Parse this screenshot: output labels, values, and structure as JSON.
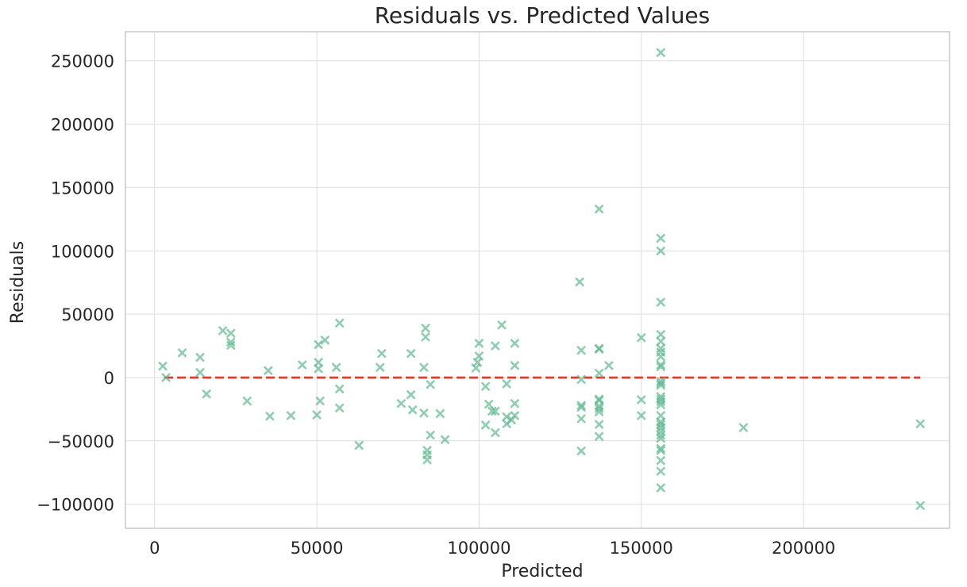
{
  "chart_data": {
    "type": "scatter",
    "title": "Residuals vs. Predicted Values",
    "xlabel": "Predicted",
    "ylabel": "Residuals",
    "xlim": [
      -9000,
      245000
    ],
    "ylim": [
      -119000,
      273000
    ],
    "x_ticks": [
      0,
      50000,
      100000,
      150000,
      200000
    ],
    "y_ticks": [
      -100000,
      -50000,
      0,
      50000,
      100000,
      150000,
      200000,
      250000
    ],
    "x_tick_labels": [
      "0",
      "50000",
      "100000",
      "150000",
      "200000"
    ],
    "y_tick_labels": [
      "−100000",
      "−50000",
      "0",
      "50000",
      "100000",
      "150000",
      "200000",
      "250000"
    ],
    "grid": true,
    "marker": "x",
    "marker_color": "#5fb88f",
    "reference_line": {
      "y": 0,
      "x_range": [
        3000,
        236000
      ],
      "style": "dashed",
      "color": "#e8392f"
    },
    "series": [
      {
        "points": [
          [
            2500,
            9000
          ],
          [
            3500,
            0
          ],
          [
            8500,
            19500
          ],
          [
            14000,
            16000
          ],
          [
            14000,
            4000
          ],
          [
            16000,
            -13000
          ],
          [
            21000,
            37000
          ],
          [
            23500,
            35000
          ],
          [
            23500,
            28000
          ],
          [
            23500,
            25500
          ],
          [
            28500,
            -18500
          ],
          [
            35000,
            5500
          ],
          [
            35500,
            -30500
          ],
          [
            42000,
            -30000
          ],
          [
            45500,
            10000
          ],
          [
            50000,
            -29500
          ],
          [
            50500,
            26000
          ],
          [
            50500,
            12000
          ],
          [
            50500,
            7000
          ],
          [
            51000,
            -18500
          ],
          [
            52500,
            29500
          ],
          [
            56000,
            8000
          ],
          [
            57000,
            43000
          ],
          [
            57000,
            -9000
          ],
          [
            57000,
            -24000
          ],
          [
            63000,
            -53500
          ],
          [
            69500,
            8000
          ],
          [
            70000,
            19000
          ],
          [
            76000,
            -20500
          ],
          [
            79000,
            19000
          ],
          [
            79000,
            -13500
          ],
          [
            79500,
            -25500
          ],
          [
            83000,
            8000
          ],
          [
            83000,
            -28000
          ],
          [
            83500,
            39000
          ],
          [
            83500,
            32000
          ],
          [
            84000,
            -57500
          ],
          [
            84000,
            -61000
          ],
          [
            84000,
            -65000
          ],
          [
            85000,
            -5500
          ],
          [
            85000,
            -45500
          ],
          [
            88000,
            -28500
          ],
          [
            89500,
            -49000
          ],
          [
            99000,
            7500
          ],
          [
            99500,
            12000
          ],
          [
            100000,
            17000
          ],
          [
            100000,
            27000
          ],
          [
            102000,
            -7000
          ],
          [
            102000,
            -37500
          ],
          [
            103000,
            -21000
          ],
          [
            104000,
            -26500
          ],
          [
            105000,
            25000
          ],
          [
            105000,
            -26500
          ],
          [
            105000,
            -43500
          ],
          [
            107000,
            41500
          ],
          [
            108500,
            -5000
          ],
          [
            108500,
            -31000
          ],
          [
            108500,
            -36500
          ],
          [
            110000,
            -33500
          ],
          [
            111000,
            27000
          ],
          [
            111000,
            9500
          ],
          [
            111000,
            -20500
          ],
          [
            111000,
            -30000
          ],
          [
            131000,
            75500
          ],
          [
            131500,
            21500
          ],
          [
            131500,
            -1500
          ],
          [
            131500,
            -22000
          ],
          [
            131500,
            -23500
          ],
          [
            131500,
            -32500
          ],
          [
            131500,
            -58000
          ],
          [
            137000,
            133000
          ],
          [
            137000,
            23000
          ],
          [
            137000,
            22500
          ],
          [
            137000,
            3500
          ],
          [
            137000,
            -17000
          ],
          [
            137000,
            -18000
          ],
          [
            137000,
            -22500
          ],
          [
            137000,
            -24500
          ],
          [
            137000,
            -27000
          ],
          [
            137000,
            -37000
          ],
          [
            137000,
            -46500
          ],
          [
            140000,
            9500
          ],
          [
            150000,
            31500
          ],
          [
            150000,
            -17500
          ],
          [
            150000,
            -30000
          ],
          [
            156000,
            256500
          ],
          [
            156000,
            110000
          ],
          [
            156000,
            100000
          ],
          [
            156000,
            59500
          ],
          [
            156000,
            34000
          ],
          [
            156000,
            28500
          ],
          [
            156000,
            23000
          ],
          [
            156000,
            20000
          ],
          [
            156000,
            16500
          ],
          [
            156000,
            10000
          ],
          [
            156000,
            8500
          ],
          [
            156000,
            -3000
          ],
          [
            156000,
            -4500
          ],
          [
            156000,
            -6000
          ],
          [
            156000,
            -15000
          ],
          [
            156000,
            -17000
          ],
          [
            156000,
            -19000
          ],
          [
            156000,
            -21500
          ],
          [
            156000,
            -30000
          ],
          [
            156000,
            -35000
          ],
          [
            156000,
            -37000
          ],
          [
            156000,
            -39500
          ],
          [
            156000,
            -42500
          ],
          [
            156000,
            -45500
          ],
          [
            156000,
            -48000
          ],
          [
            156000,
            -56000
          ],
          [
            156000,
            -57500
          ],
          [
            156000,
            -65500
          ],
          [
            156000,
            -74000
          ],
          [
            156000,
            -87000
          ],
          [
            181500,
            -39500
          ],
          [
            236000,
            -36500
          ],
          [
            236000,
            -101000
          ]
        ]
      }
    ]
  }
}
